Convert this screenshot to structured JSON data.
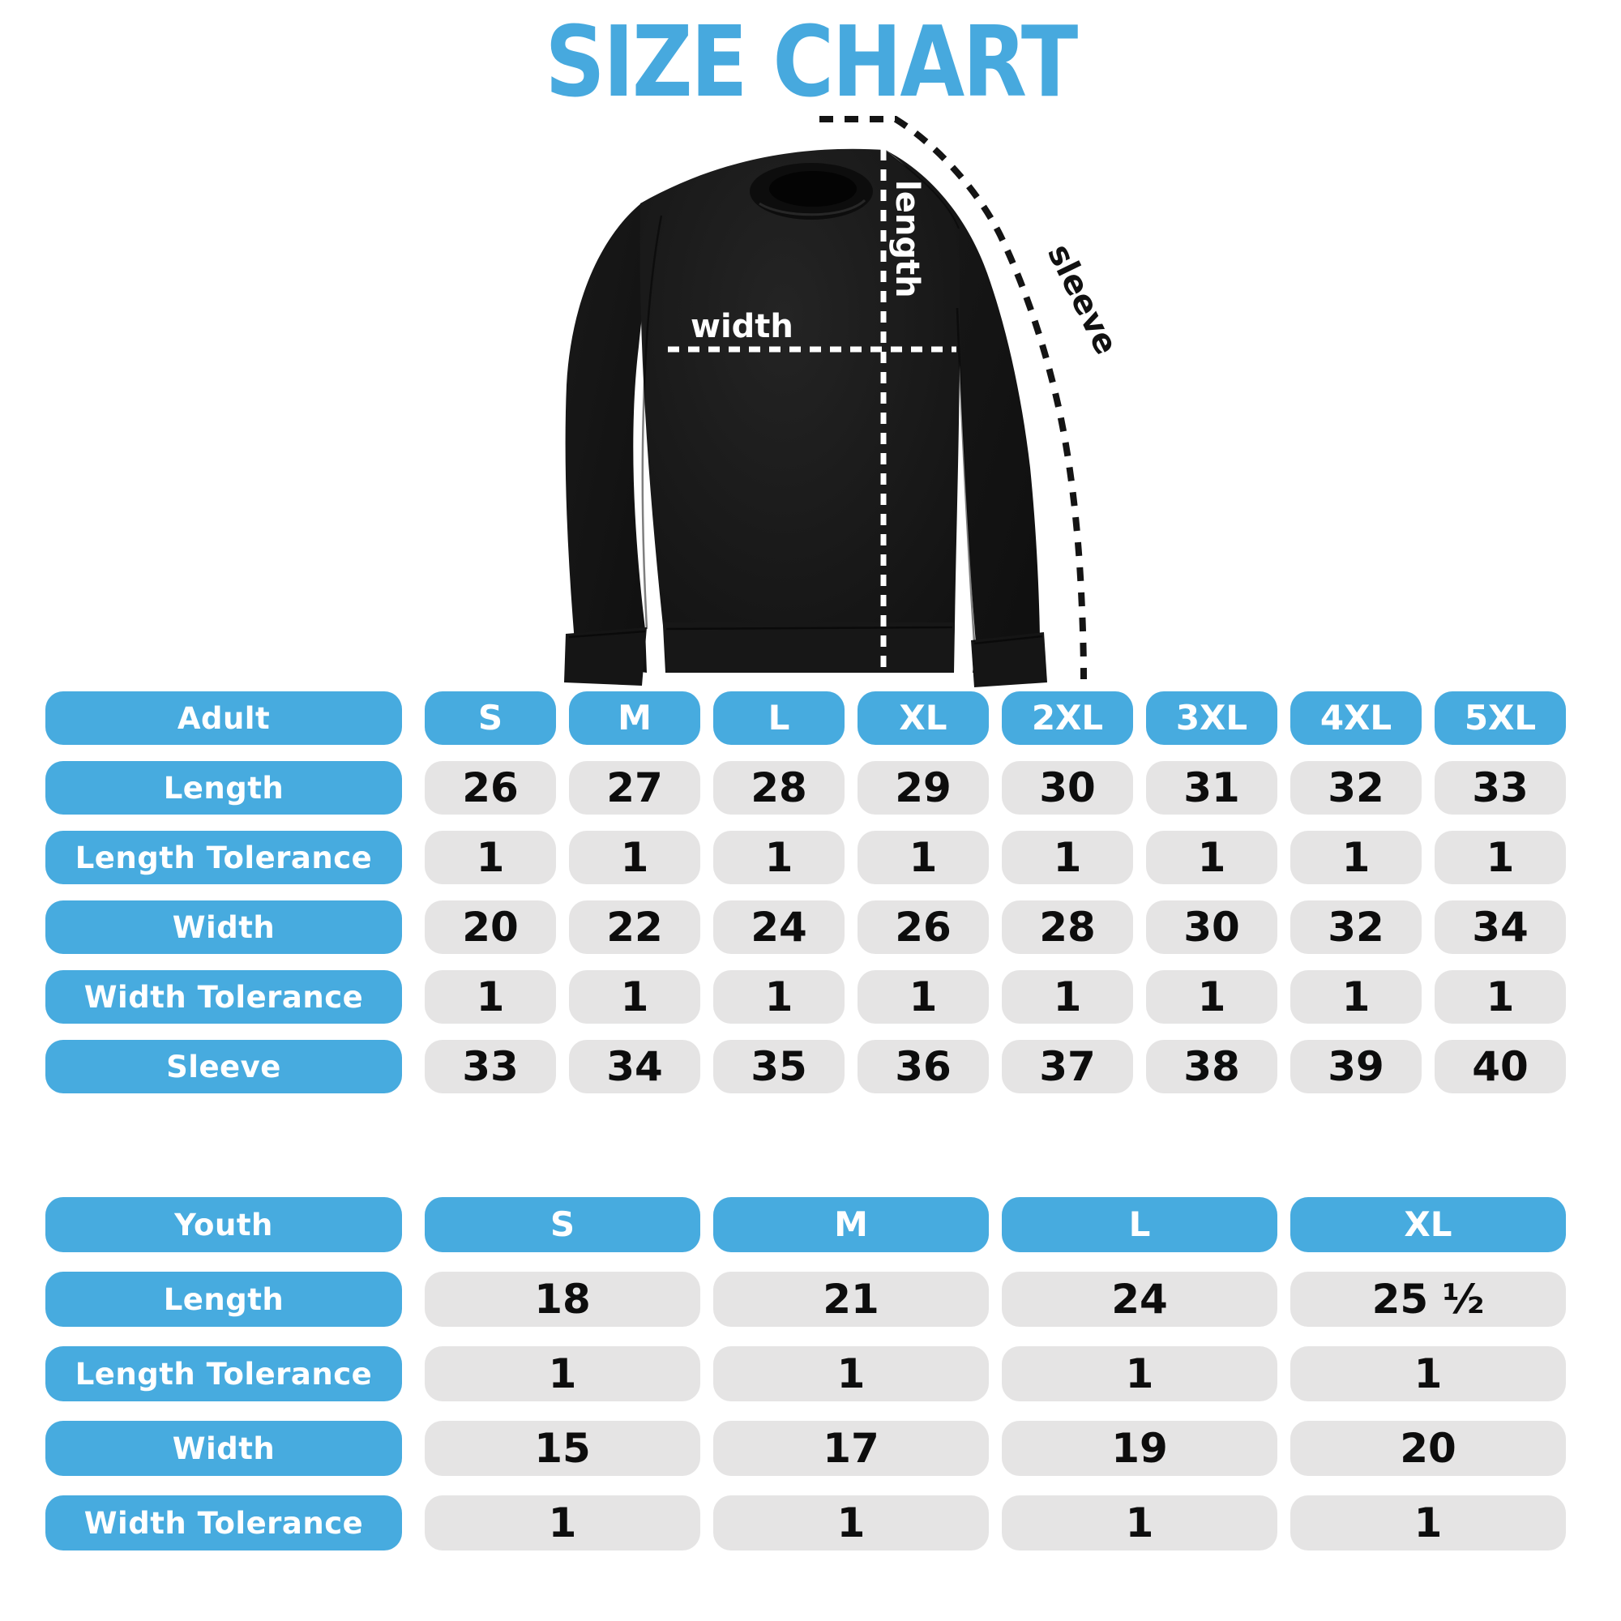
{
  "title": "SIZE CHART",
  "colors": {
    "title_blue": "#47a9de",
    "blue": "#47abdf",
    "cell_gray": "#e5e4e4",
    "ink": "#0d0d0d",
    "garment_black": "#161616",
    "line_white": "#ffffff",
    "line_black": "#141414"
  },
  "diagram": {
    "width_label": "width",
    "length_label": "length",
    "sleeve_label": "sleeve"
  },
  "chart_data": [
    {
      "type": "table",
      "name": "adult",
      "header_label": "Adult",
      "sizes": [
        "S",
        "M",
        "L",
        "XL",
        "2XL",
        "3XL",
        "4XL",
        "5XL"
      ],
      "rows": [
        {
          "label": "Length",
          "values": [
            "26",
            "27",
            "28",
            "29",
            "30",
            "31",
            "32",
            "33"
          ]
        },
        {
          "label": "Length Tolerance",
          "values": [
            "1",
            "1",
            "1",
            "1",
            "1",
            "1",
            "1",
            "1"
          ]
        },
        {
          "label": "Width",
          "values": [
            "20",
            "22",
            "24",
            "26",
            "28",
            "30",
            "32",
            "34"
          ]
        },
        {
          "label": "Width Tolerance",
          "values": [
            "1",
            "1",
            "1",
            "1",
            "1",
            "1",
            "1",
            "1"
          ]
        },
        {
          "label": "Sleeve",
          "values": [
            "33",
            "34",
            "35",
            "36",
            "37",
            "38",
            "39",
            "40"
          ]
        }
      ]
    },
    {
      "type": "table",
      "name": "youth",
      "header_label": "Youth",
      "sizes": [
        "S",
        "M",
        "L",
        "XL"
      ],
      "rows": [
        {
          "label": "Length",
          "values": [
            "18",
            "21",
            "24",
            "25 ½"
          ]
        },
        {
          "label": "Length Tolerance",
          "values": [
            "1",
            "1",
            "1",
            "1"
          ]
        },
        {
          "label": "Width",
          "values": [
            "15",
            "17",
            "19",
            "20"
          ]
        },
        {
          "label": "Width Tolerance",
          "values": [
            "1",
            "1",
            "1",
            "1"
          ]
        }
      ]
    }
  ]
}
